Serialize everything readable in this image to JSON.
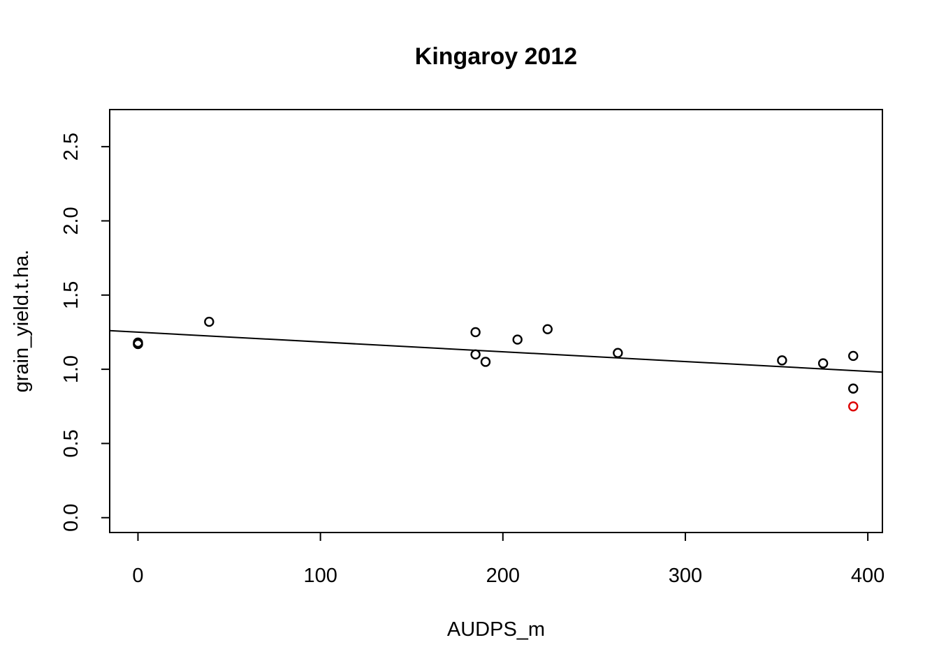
{
  "chart_data": {
    "type": "scatter",
    "title": "Kingaroy 2012",
    "xlabel": "AUDPS_m",
    "ylabel": "grain_yield.t.ha.",
    "xlim": [
      -15.5,
      408
    ],
    "ylim": [
      -0.1,
      2.75
    ],
    "xticks": [
      0,
      100,
      200,
      300,
      400
    ],
    "yticks": [
      0.0,
      0.5,
      1.0,
      1.5,
      2.0,
      2.5
    ],
    "xtick_labels": [
      "0",
      "100",
      "200",
      "300",
      "400"
    ],
    "ytick_labels": [
      "0.0",
      "0.5",
      "1.0",
      "1.5",
      "2.0",
      "2.5"
    ],
    "grid": false,
    "points": [
      {
        "x": 0,
        "y": 1.18
      },
      {
        "x": 0,
        "y": 1.17
      },
      {
        "x": 0,
        "y": 1.17
      },
      {
        "x": 39,
        "y": 1.32
      },
      {
        "x": 185,
        "y": 1.25
      },
      {
        "x": 185,
        "y": 1.1
      },
      {
        "x": 190.5,
        "y": 1.05
      },
      {
        "x": 208,
        "y": 1.2
      },
      {
        "x": 224.5,
        "y": 1.27
      },
      {
        "x": 263,
        "y": 1.11
      },
      {
        "x": 353,
        "y": 1.06
      },
      {
        "x": 375.5,
        "y": 1.04
      },
      {
        "x": 392,
        "y": 1.09
      },
      {
        "x": 392,
        "y": 0.87
      }
    ],
    "highlighted_points": [
      {
        "x": 392,
        "y": 0.75,
        "color": "#dd0000"
      }
    ],
    "point_color": "#000000",
    "fit_line": {
      "intercept": 1.25,
      "slope": -0.00066
    }
  }
}
